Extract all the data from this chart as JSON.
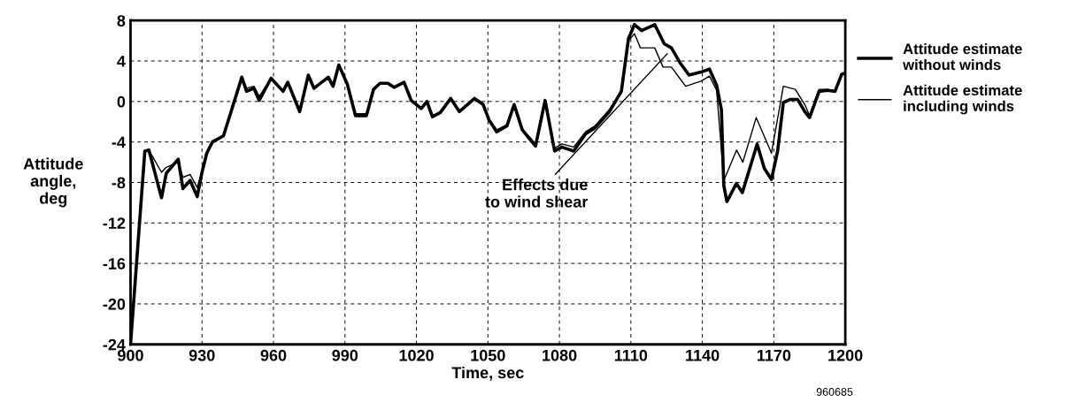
{
  "chart_data": {
    "type": "line",
    "xlabel": "Time, sec",
    "ylabel": "Attitude\nangle,\ndeg",
    "xlim": [
      900,
      1200
    ],
    "xticks": [
      900,
      930,
      960,
      990,
      1020,
      1050,
      1080,
      1110,
      1140,
      1170,
      1200
    ],
    "ylim": [
      -24,
      8
    ],
    "yticks": [
      -24,
      -20,
      -16,
      -12,
      -8,
      -4,
      0,
      4,
      8
    ],
    "grid": true,
    "line_style": "solid",
    "marker": "none",
    "legend": "right",
    "series": [
      {
        "name": "Attitude estimate\nwithout winds",
        "color": "#000000",
        "x": [
          900,
          906,
          907.7,
          913,
          915,
          920,
          922,
          925,
          928,
          930,
          932,
          934.4,
          939,
          942.6,
          946.7,
          948.7,
          951.8,
          954,
          959,
          964,
          966,
          971,
          974.6,
          977,
          983,
          985,
          987.4,
          991,
          994.4,
          999,
          1002,
          1004.7,
          1008,
          1010.6,
          1014.8,
          1017.8,
          1022,
          1024.4,
          1026.7,
          1030,
          1034.4,
          1038,
          1044.4,
          1048,
          1050.4,
          1053.7,
          1058,
          1061,
          1064.4,
          1067.5,
          1070,
          1074,
          1078,
          1081,
          1086,
          1091,
          1095,
          1101,
          1106,
          1109,
          1111.5,
          1114.5,
          1120,
          1124,
          1127,
          1130.7,
          1134.4,
          1139.4,
          1143,
          1146,
          1148,
          1149,
          1150.3,
          1154.3,
          1156.8,
          1163,
          1166,
          1169,
          1171.6,
          1174,
          1176.8,
          1180,
          1183,
          1185,
          1189,
          1192.6,
          1195.7,
          1198.5,
          1200
        ],
        "values": [
          -24,
          -4.9,
          -4.8,
          -9.5,
          -7.1,
          -5.7,
          -8.6,
          -7.8,
          -9.4,
          -7,
          -5.1,
          -4,
          -3.4,
          -0.7,
          2.4,
          1,
          1.3,
          0.1,
          2.3,
          1,
          1.9,
          -1,
          2.6,
          1.3,
          2.4,
          1.5,
          3.6,
          1.7,
          -1.4,
          -1.4,
          1.2,
          1.8,
          1.8,
          1.4,
          1.9,
          0.1,
          -0.7,
          0,
          -1.5,
          -1.1,
          0.3,
          -1,
          0.3,
          -0.3,
          -1.8,
          -3,
          -2.4,
          -0.3,
          -2.8,
          -3.7,
          -4.4,
          0.1,
          -4.9,
          -4.5,
          -4.9,
          -3.2,
          -2.6,
          -1,
          1,
          6.2,
          7.6,
          7,
          7.6,
          5.7,
          5.3,
          3.8,
          2.6,
          2.9,
          3.2,
          1.6,
          -0.8,
          -8.3,
          -9.9,
          -8.1,
          -9,
          -4.2,
          -6.6,
          -7.7,
          -4.9,
          -0.1,
          0.2,
          0.2,
          -1,
          -1.6,
          1,
          1.1,
          1,
          2.7,
          2.8
        ]
      },
      {
        "name": "Attitude estimate\nincluding winds",
        "color": "#000000",
        "x": [
          900,
          906,
          907.7,
          913,
          915,
          920,
          922,
          925,
          928,
          930,
          932,
          934.4,
          939,
          942.6,
          946.7,
          948.7,
          951.8,
          954,
          959,
          964,
          966,
          971,
          974.6,
          977,
          983,
          985,
          987.4,
          991,
          994.4,
          999,
          1002,
          1004.7,
          1008,
          1010.6,
          1014.8,
          1017.8,
          1022,
          1024.4,
          1026.7,
          1030,
          1034.4,
          1038,
          1044.4,
          1048,
          1050.4,
          1053.7,
          1058,
          1061,
          1064.4,
          1067.5,
          1070,
          1074,
          1078,
          1081,
          1086,
          1091,
          1095,
          1101,
          1106,
          1109,
          1111.5,
          1114,
          1120,
          1123.5,
          1127,
          1133,
          1139.4,
          1143,
          1146,
          1149,
          1154.4,
          1157,
          1162.6,
          1165,
          1169,
          1174,
          1179,
          1183,
          1185,
          1189,
          1192.6,
          1195.7,
          1198.5,
          1200
        ],
        "values": [
          -24,
          -4.9,
          -4.8,
          -7,
          -6.5,
          -6,
          -7.5,
          -7.2,
          -8.5,
          -6.8,
          -5.1,
          -4,
          -3.4,
          -0.7,
          2.4,
          1.3,
          1.5,
          0.5,
          2.3,
          1,
          1.9,
          -0.8,
          2.6,
          1.3,
          2.4,
          1.5,
          3.6,
          1.7,
          -1.2,
          -1.2,
          1.2,
          1.8,
          1.8,
          1.4,
          1.9,
          0.1,
          -0.7,
          0,
          -1.4,
          -1.1,
          0.3,
          -1,
          0.3,
          -0.3,
          -1.7,
          -2.8,
          -2.3,
          -0.3,
          -2.8,
          -3.5,
          -4.2,
          0.1,
          -4.6,
          -4.2,
          -4.5,
          -3,
          -2.4,
          -0.8,
          1,
          6,
          6.7,
          5.3,
          5.3,
          3.4,
          3.4,
          1.5,
          2,
          2.5,
          1.1,
          -7.8,
          -4.8,
          -6,
          -1.6,
          -2.9,
          -5.1,
          1.5,
          1.2,
          -0.3,
          -1.4,
          1.2,
          1.2,
          1,
          2.7,
          2.8
        ]
      }
    ],
    "annotations": [
      {
        "text": "Effects due\nto wind shear",
        "x": 1126,
        "y": 4.9
      },
      "960685"
    ]
  }
}
